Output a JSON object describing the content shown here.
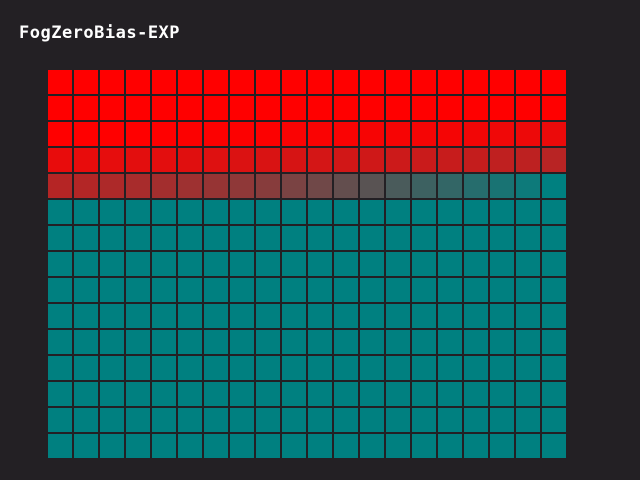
{
  "title": "FogZeroBias-EXP",
  "grid": {
    "columns": 20,
    "rows": 15,
    "near_color": "#ff0000",
    "fog_color": "#008080",
    "background_color": "#232024",
    "fog_fraction_by_row": [
      [
        0.0,
        0.0,
        0.0,
        0.0,
        0.0,
        0.0,
        0.0,
        0.0,
        0.0,
        0.0,
        0.0,
        0.0,
        0.0,
        0.0,
        0.0,
        0.0,
        0.0,
        0.0,
        0.0,
        0.0
      ],
      [
        0.0,
        0.0,
        0.0,
        0.0,
        0.0,
        0.0,
        0.0,
        0.0,
        0.0,
        0.0,
        0.0,
        0.0,
        0.0,
        0.0,
        0.0,
        0.0,
        0.0,
        0.0,
        0.0,
        0.0
      ],
      [
        0.0,
        0.0,
        0.0,
        0.0,
        0.0,
        0.01,
        0.01,
        0.01,
        0.01,
        0.02,
        0.02,
        0.02,
        0.03,
        0.03,
        0.04,
        0.04,
        0.05,
        0.06,
        0.07,
        0.08
      ],
      [
        0.09,
        0.09,
        0.1,
        0.11,
        0.11,
        0.12,
        0.13,
        0.14,
        0.15,
        0.16,
        0.17,
        0.18,
        0.19,
        0.2,
        0.21,
        0.22,
        0.23,
        0.25,
        0.26,
        0.28
      ],
      [
        0.29,
        0.3,
        0.32,
        0.34,
        0.36,
        0.38,
        0.41,
        0.44,
        0.47,
        0.52,
        0.56,
        0.61,
        0.65,
        0.71,
        0.76,
        0.8,
        0.85,
        0.9,
        0.95,
        1.0
      ],
      [
        1,
        1,
        1,
        1,
        1,
        1,
        1,
        1,
        1,
        1,
        1,
        1,
        1,
        1,
        1,
        1,
        1,
        1,
        1,
        1
      ],
      [
        1,
        1,
        1,
        1,
        1,
        1,
        1,
        1,
        1,
        1,
        1,
        1,
        1,
        1,
        1,
        1,
        1,
        1,
        1,
        1
      ],
      [
        1,
        1,
        1,
        1,
        1,
        1,
        1,
        1,
        1,
        1,
        1,
        1,
        1,
        1,
        1,
        1,
        1,
        1,
        1,
        1
      ],
      [
        1,
        1,
        1,
        1,
        1,
        1,
        1,
        1,
        1,
        1,
        1,
        1,
        1,
        1,
        1,
        1,
        1,
        1,
        1,
        1
      ],
      [
        1,
        1,
        1,
        1,
        1,
        1,
        1,
        1,
        1,
        1,
        1,
        1,
        1,
        1,
        1,
        1,
        1,
        1,
        1,
        1
      ],
      [
        1,
        1,
        1,
        1,
        1,
        1,
        1,
        1,
        1,
        1,
        1,
        1,
        1,
        1,
        1,
        1,
        1,
        1,
        1,
        1
      ],
      [
        1,
        1,
        1,
        1,
        1,
        1,
        1,
        1,
        1,
        1,
        1,
        1,
        1,
        1,
        1,
        1,
        1,
        1,
        1,
        1
      ],
      [
        1,
        1,
        1,
        1,
        1,
        1,
        1,
        1,
        1,
        1,
        1,
        1,
        1,
        1,
        1,
        1,
        1,
        1,
        1,
        1
      ],
      [
        1,
        1,
        1,
        1,
        1,
        1,
        1,
        1,
        1,
        1,
        1,
        1,
        1,
        1,
        1,
        1,
        1,
        1,
        1,
        1
      ],
      [
        1,
        1,
        1,
        1,
        1,
        1,
        1,
        1,
        1,
        1,
        1,
        1,
        1,
        1,
        1,
        1,
        1,
        1,
        1,
        1
      ]
    ]
  }
}
